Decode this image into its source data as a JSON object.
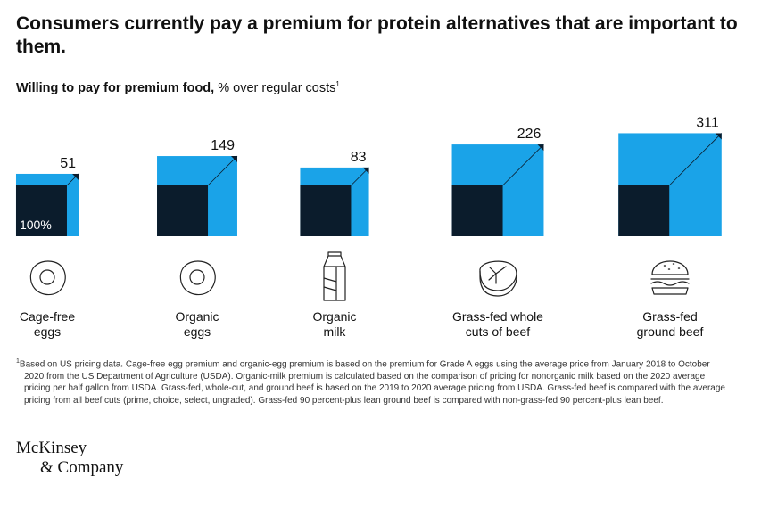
{
  "title": "Consumers currently pay a premium for protein alternatives that are important to them.",
  "subtitle": {
    "bold": "Willing to pay for premium food,",
    "rest": " % over regular costs",
    "note_marker": "1"
  },
  "chart_data": {
    "type": "bar",
    "categories": [
      "Cage-free eggs",
      "Organic eggs",
      "Organic milk",
      "Grass-fed whole cuts of beef",
      "Grass-fed ground beef"
    ],
    "category_lines": [
      [
        "Cage-free",
        "eggs"
      ],
      [
        "Organic",
        "eggs"
      ],
      [
        "Organic",
        "milk"
      ],
      [
        "Grass-fed whole",
        "cuts of beef"
      ],
      [
        "Grass-fed",
        "ground beef"
      ]
    ],
    "values": [
      51,
      149,
      83,
      226,
      311
    ],
    "base_value": 100,
    "base_label": "100%",
    "icons": [
      "fried-egg-icon",
      "fried-egg-icon",
      "milk-carton-icon",
      "steak-icon",
      "burger-icon"
    ],
    "colors": {
      "premium": "#1aa3e8",
      "base": "#0b1c2c",
      "corner": "#0b1c2c"
    }
  },
  "footnote": {
    "marker": "1",
    "text": "Based on US pricing data. Cage-free egg premium and organic-egg premium is based on the premium for Grade A eggs using the average price from January 2018 to October 2020 from the US Department of Agriculture (USDA). Organic-milk premium is calculated based on the comparison of pricing for nonorganic milk based on the 2020 average pricing per half gallon from USDA. Grass-fed, whole-cut, and ground beef is based on the 2019 to 2020 average pricing from USDA. Grass-fed beef is compared with the average pricing from all beef cuts (prime, choice, select, ungraded). Grass-fed 90 percent-plus lean ground beef is compared with non-grass-fed 90 percent-plus lean beef."
  },
  "logo": {
    "line1": "McKinsey",
    "line2": "& Company"
  }
}
